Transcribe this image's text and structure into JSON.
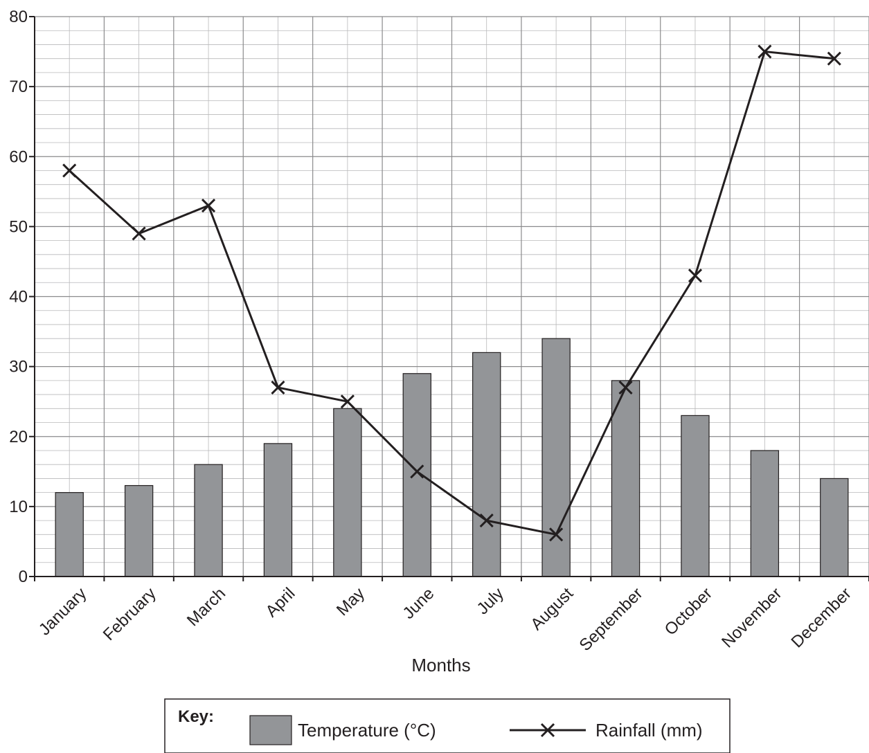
{
  "chart_data": {
    "type": "bar+line",
    "categories": [
      "January",
      "February",
      "March",
      "April",
      "May",
      "June",
      "July",
      "August",
      "September",
      "October",
      "November",
      "December"
    ],
    "series": [
      {
        "name": "Temperature (°C)",
        "kind": "bar",
        "values": [
          12,
          13,
          16,
          19,
          24,
          29,
          32,
          34,
          28,
          23,
          18,
          14
        ],
        "color": "#939598"
      },
      {
        "name": "Rainfall (mm)",
        "kind": "line",
        "marker": "x",
        "values": [
          58,
          49,
          53,
          27,
          25,
          15,
          8,
          6,
          27,
          43,
          75,
          74
        ],
        "color": "#231f20"
      }
    ],
    "xlabel": "Months",
    "ylabel": "",
    "ylim": [
      0,
      80
    ],
    "yticks": [
      0,
      10,
      20,
      30,
      40,
      50,
      60,
      70,
      80
    ],
    "grid": true,
    "legend": {
      "title": "Key:",
      "placement": "bottom-center"
    }
  }
}
